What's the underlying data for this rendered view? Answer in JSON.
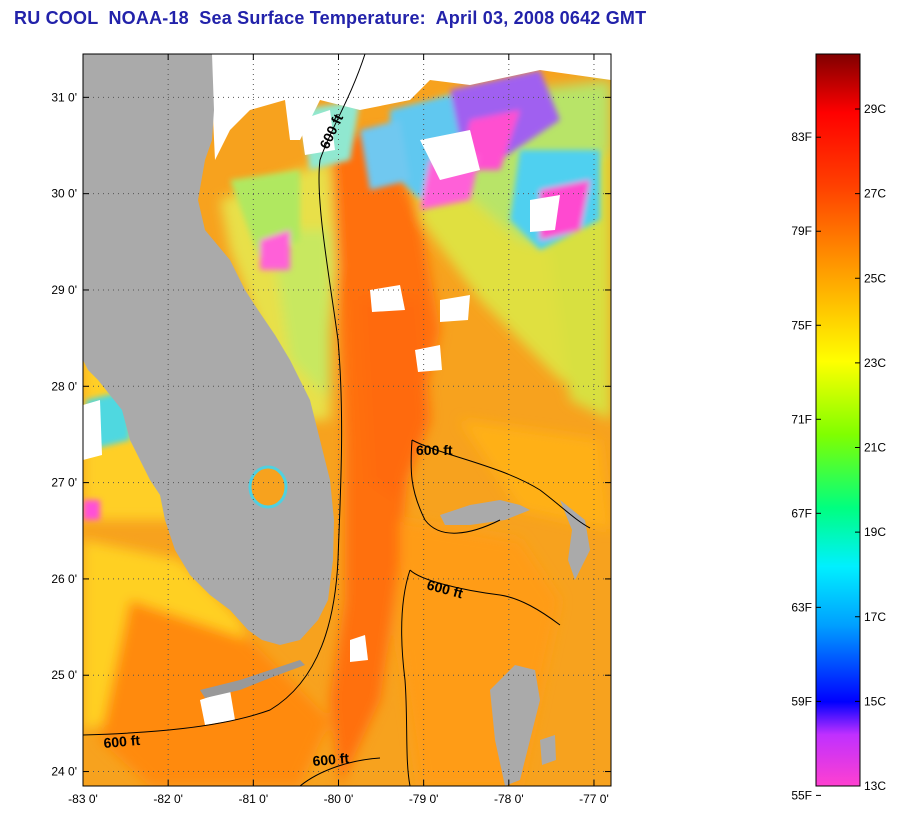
{
  "title": "RU COOL  NOAA-18  Sea Surface Temperature:  April 03, 2008 0642 GMT",
  "map": {
    "lon_range": [
      -83,
      -76.8
    ],
    "lat_range": [
      23.85,
      31.45
    ],
    "lon_ticks": [
      {
        "value": -83,
        "label": "-83 0'"
      },
      {
        "value": -82,
        "label": "-82 0'"
      },
      {
        "value": -81,
        "label": "-81 0'"
      },
      {
        "value": -80,
        "label": "-80 0'"
      },
      {
        "value": -79,
        "label": "-79 0'"
      },
      {
        "value": -78,
        "label": "-78 0'"
      },
      {
        "value": -77,
        "label": "-77 0'"
      }
    ],
    "lat_ticks": [
      {
        "value": 24,
        "label": "24 0'"
      },
      {
        "value": 25,
        "label": "25 0'"
      },
      {
        "value": 26,
        "label": "26 0'"
      },
      {
        "value": 27,
        "label": "27 0'"
      },
      {
        "value": 28,
        "label": "28 0'"
      },
      {
        "value": 29,
        "label": "29 0'"
      },
      {
        "value": 30,
        "label": "30 0'"
      },
      {
        "value": 31,
        "label": "31 0'"
      }
    ],
    "contour_labels": [
      "600 ft",
      "600 ft",
      "600 ft",
      "600 ft",
      "600 ft"
    ],
    "colors": {
      "land": "#aaaaaa",
      "cloud": "#ffffff",
      "warm_water": "#f79a1e",
      "gulf_stream": "#ff6a10",
      "shelf_water": "#ffd21e",
      "cool_water": "#c8f050",
      "cold_water": "#40e8e0",
      "coldest": "#ff40d8"
    }
  },
  "colorbar": {
    "min_c": 13,
    "max_c": 30.3,
    "fahrenheit_labels": [
      "83F",
      "79F",
      "75F",
      "71F",
      "67F",
      "63F",
      "59F",
      "55F"
    ],
    "celsius_labels": [
      "29C",
      "27C",
      "25C",
      "23C",
      "21C",
      "19C",
      "17C",
      "15C",
      "13C"
    ],
    "fahrenheit_values": [
      83,
      79,
      75,
      71,
      67,
      63,
      59,
      55
    ],
    "celsius_values": [
      29,
      27,
      25,
      23,
      21,
      19,
      17,
      15,
      13
    ]
  }
}
